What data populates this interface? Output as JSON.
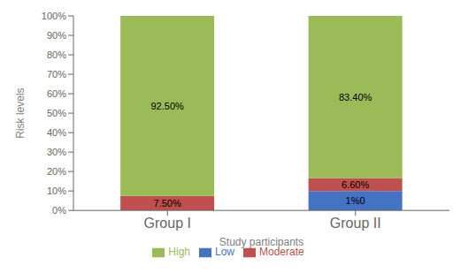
{
  "chart_data": {
    "type": "bar",
    "stacked": true,
    "xlabel": "Study participants",
    "ylabel": "Risk levels",
    "categories": [
      "Group I",
      "Group II"
    ],
    "series": [
      {
        "name": "Low",
        "color": "#4472C4",
        "values": [
          0.0,
          10.0
        ],
        "value_labels": [
          null,
          "1%0"
        ]
      },
      {
        "name": "Moderate",
        "color": "#C0504D",
        "values": [
          7.5,
          6.6
        ],
        "value_labels": [
          "7.50%",
          "6.60%"
        ]
      },
      {
        "name": "High",
        "color": "#9BBB59",
        "values": [
          92.5,
          83.4
        ],
        "value_labels": [
          "92.50%",
          "83.40%"
        ]
      }
    ],
    "ylim": [
      0,
      100
    ],
    "yticks": [
      {
        "value": 0,
        "label": "0%"
      },
      {
        "value": 10,
        "label": "10%"
      },
      {
        "value": 20,
        "label": "20%"
      },
      {
        "value": 30,
        "label": "30%"
      },
      {
        "value": 40,
        "label": "40%"
      },
      {
        "value": 50,
        "label": "50%"
      },
      {
        "value": 60,
        "label": "60%"
      },
      {
        "value": 70,
        "label": "70%"
      },
      {
        "value": 80,
        "label": "80%"
      },
      {
        "value": 90,
        "label": "90%"
      },
      {
        "value": 100,
        "label": "100%"
      }
    ],
    "data_labels": true,
    "grid": false,
    "legend": "bottom"
  }
}
